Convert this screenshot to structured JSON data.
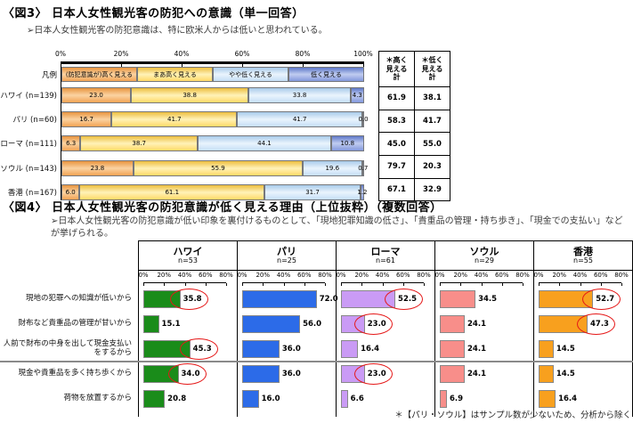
{
  "fig3": {
    "title": "〈図3〉 日本人女性観光客の防犯への意識（単一回答）",
    "subtitle": "➢日本人女性観光客の防犯意識は、特に欧米人からは低いと思われている。",
    "legend_label": "凡例",
    "axis_ticks": [
      "0%",
      "20%",
      "40%",
      "60%",
      "80%",
      "100%"
    ],
    "categories": [
      "(防犯意識が)高く見える",
      "まあ高く見える",
      "やや低く見える",
      "低く見える"
    ],
    "segment_colors": [
      "#F2A354",
      "#FFD966",
      "#C5DEF6",
      "#8398DC"
    ],
    "rows": [
      {
        "label": "ハワイ (n=139)",
        "values": [
          23.0,
          38.8,
          33.8,
          4.3
        ],
        "high_total": "61.9",
        "low_total": "38.1"
      },
      {
        "label": "パリ (n=60)",
        "values": [
          16.7,
          41.7,
          41.7,
          0.0
        ],
        "high_total": "58.3",
        "low_total": "41.7"
      },
      {
        "label": "ローマ (n=111)",
        "values": [
          6.3,
          38.7,
          44.1,
          10.8
        ],
        "high_total": "45.0",
        "low_total": "55.0"
      },
      {
        "label": "ソウル (n=143)",
        "values": [
          23.8,
          55.9,
          19.6,
          0.7
        ],
        "high_total": "79.7",
        "low_total": "20.3"
      },
      {
        "label": "香港 (n=167)",
        "values": [
          6.0,
          61.1,
          31.7,
          1.2
        ],
        "high_total": "67.1",
        "low_total": "32.9"
      }
    ],
    "table_headers": [
      "＊高く\n見える\n計",
      "＊低く\n見える\n計"
    ]
  },
  "fig4": {
    "title": "〈図4〉 日本人女性観光客の防犯意識が低く見える理由（上位抜粋）（複数回答）",
    "subtitle": "➢日本人女性観光客の防犯意識が低い印象を裏付けるものとして、「現地犯罪知識の低さ」、「貴重品の管理・持ち歩き」、「現金での支払い」などが挙げられる。",
    "axis_ticks": [
      "0%",
      "20%",
      "40%",
      "60%",
      "80%"
    ],
    "axis_max": 80,
    "row_labels": [
      "現地の犯罪への知識が低いから",
      "財布など貴重品の管理が甘いから",
      "人前で財布の中身を出して現金支払いをするから",
      "現金や貴重品を多く持ち歩くから",
      "荷物を放置するから"
    ],
    "cities": [
      {
        "name": "ハワイ",
        "n": "n=53",
        "color": "#1a8c1a",
        "values": [
          35.8,
          15.1,
          45.3,
          34.0,
          20.8
        ],
        "circled": [
          true,
          false,
          true,
          true,
          false
        ]
      },
      {
        "name": "パリ",
        "n": "n=25",
        "color": "#2c6be8",
        "values": [
          72.0,
          56.0,
          36.0,
          36.0,
          16.0
        ],
        "circled": [
          false,
          false,
          false,
          false,
          false
        ]
      },
      {
        "name": "ローマ",
        "n": "n=61",
        "color": "#ca9bf5",
        "values": [
          52.5,
          23.0,
          16.4,
          23.0,
          6.6
        ],
        "circled": [
          true,
          true,
          false,
          true,
          false
        ]
      },
      {
        "name": "ソウル",
        "n": "n=29",
        "color": "#f88e8a",
        "values": [
          34.5,
          24.1,
          24.1,
          24.1,
          6.9
        ],
        "circled": [
          false,
          false,
          false,
          false,
          false
        ]
      },
      {
        "name": "香港",
        "n": "n=55",
        "color": "#f8a01e",
        "values": [
          52.7,
          47.3,
          14.5,
          14.5,
          16.4
        ],
        "circled": [
          true,
          true,
          false,
          false,
          false
        ]
      }
    ],
    "footnote": "＊【パリ・ソウル】はサンプル数が少ないため、分析から除く",
    "highlight_color": "#e51717"
  },
  "chart_data": [
    {
      "type": "bar",
      "subtype": "horizontal-stacked",
      "title": "〈図3〉 日本人女性観光客の防犯への意識（単一回答）",
      "categories": [
        "ハワイ (n=139)",
        "パリ (n=60)",
        "ローマ (n=111)",
        "ソウル (n=143)",
        "香港 (n=167)"
      ],
      "series": [
        {
          "name": "(防犯意識が)高く見える",
          "values": [
            23.0,
            16.7,
            6.3,
            23.8,
            6.0
          ]
        },
        {
          "name": "まあ高く見える",
          "values": [
            38.8,
            41.7,
            38.7,
            55.9,
            61.1
          ]
        },
        {
          "name": "やや低く見える",
          "values": [
            33.8,
            41.7,
            44.1,
            19.6,
            31.7
          ]
        },
        {
          "name": "低く見える",
          "values": [
            4.3,
            0.0,
            10.8,
            0.7,
            1.2
          ]
        }
      ],
      "xlim": [
        0,
        100
      ],
      "xticks": [
        "0%",
        "20%",
        "40%",
        "60%",
        "80%",
        "100%"
      ],
      "legend_position": "top",
      "summary_columns": [
        "＊高く見える計",
        "＊低く見える計"
      ],
      "summary_rows": [
        [
          61.9,
          38.1
        ],
        [
          58.3,
          41.7
        ],
        [
          45.0,
          55.0
        ],
        [
          79.7,
          20.3
        ],
        [
          67.1,
          32.9
        ]
      ]
    },
    {
      "type": "bar",
      "subtype": "horizontal-small-multiples",
      "title": "〈図4〉 日本人女性観光客の防犯意識が低く見える理由（上位抜粋）（複数回答）",
      "categories": [
        "現地の犯罪への知識が低いから",
        "財布など貴重品の管理が甘いから",
        "人前で財布の中身を出して現金支払いをするから",
        "現金や貴重品を多く持ち歩くから",
        "荷物を放置するから"
      ],
      "series": [
        {
          "name": "ハワイ (n=53)",
          "values": [
            35.8,
            15.1,
            45.3,
            34.0,
            20.8
          ]
        },
        {
          "name": "パリ (n=25)",
          "values": [
            72.0,
            56.0,
            36.0,
            36.0,
            16.0
          ]
        },
        {
          "name": "ローマ (n=61)",
          "values": [
            52.5,
            23.0,
            16.4,
            23.0,
            6.6
          ]
        },
        {
          "name": "ソウル (n=29)",
          "values": [
            34.5,
            24.1,
            24.1,
            24.1,
            6.9
          ]
        },
        {
          "name": "香港 (n=55)",
          "values": [
            52.7,
            47.3,
            14.5,
            14.5,
            16.4
          ]
        }
      ],
      "xlim": [
        0,
        80
      ],
      "xticks": [
        "0%",
        "20%",
        "40%",
        "60%",
        "80%"
      ],
      "circled_values": {
        "ハワイ": [
          35.8,
          45.3,
          34.0
        ],
        "ローマ": [
          52.5,
          23.0,
          23.0
        ],
        "香港": [
          52.7,
          47.3
        ]
      },
      "footnote": "＊【パリ・ソウル】はサンプル数が少ないため、分析から除く"
    }
  ]
}
